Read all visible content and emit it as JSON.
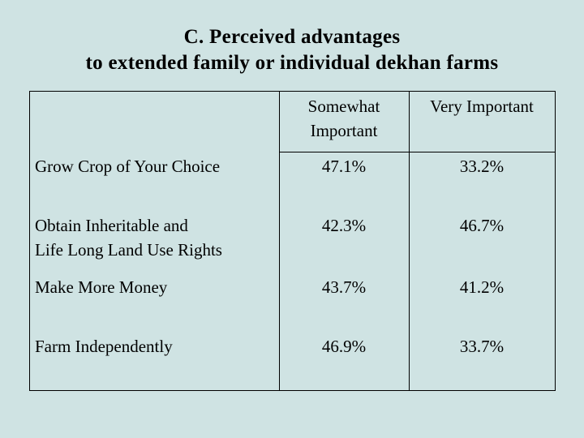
{
  "title": {
    "line1": "C. Perceived advantages",
    "line2": "to extended family or individual dekhan farms"
  },
  "table": {
    "headers": {
      "col2_line1": "Somewhat",
      "col2_line2": "Important",
      "col3": "Very Important"
    },
    "rows": [
      {
        "label_line1": "Grow Crop of Your Choice",
        "label_line2": "",
        "somewhat": "47.1%",
        "very": "33.2%"
      },
      {
        "label_line1": "Obtain  Inheritable and",
        "label_line2": "Life Long Land Use Rights",
        "somewhat": "42.3%",
        "very": "46.7%"
      },
      {
        "label_line1": "Make More Money",
        "label_line2": "",
        "somewhat": "43.7%",
        "very": "41.2%"
      },
      {
        "label_line1": "Farm Independently",
        "label_line2": "",
        "somewhat": "46.9%",
        "very": "33.7%"
      }
    ]
  }
}
